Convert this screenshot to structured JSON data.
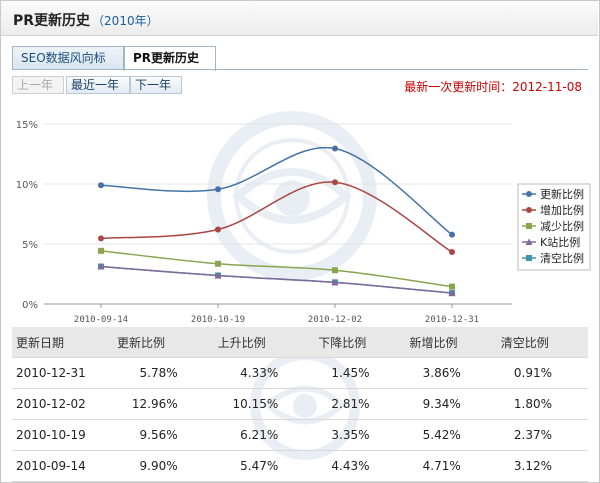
{
  "header": {
    "title": "PR更新历史",
    "year": "（2010年）"
  },
  "tabs": [
    {
      "label": "SEO数据风向标"
    },
    {
      "label": "PR更新历史"
    }
  ],
  "buttons": {
    "prev": "上一年",
    "recent": "最近一年",
    "next": "下一年"
  },
  "update_time": "最新一次更新时间：2012-11-08",
  "chart_data": {
    "type": "line",
    "categories": [
      "2010-09-14",
      "2010-10-19",
      "2010-12-02",
      "2010-12-31"
    ],
    "ylim": [
      0,
      15
    ],
    "yticks": [
      "15%",
      "10%",
      "5%",
      "0%"
    ],
    "legend_position": "right",
    "series": [
      {
        "name": "更新比例",
        "color": "#4572a7",
        "values": [
          9.9,
          9.56,
          12.96,
          5.78
        ]
      },
      {
        "name": "增加比例",
        "color": "#aa4643",
        "values": [
          5.47,
          6.21,
          10.15,
          4.33
        ]
      },
      {
        "name": "减少比例",
        "color": "#89a54e",
        "values": [
          4.43,
          3.35,
          2.81,
          1.45
        ]
      },
      {
        "name": "K站比例",
        "color": "#80699b",
        "values": [
          3.12,
          2.37,
          1.8,
          0.91
        ]
      },
      {
        "name": "清空比例",
        "color": "#3d96ae",
        "values": [
          3.12,
          2.37,
          1.8,
          0.91
        ]
      }
    ]
  },
  "table": {
    "headers": [
      "更新日期",
      "更新比例",
      "上升比例",
      "下降比例",
      "新增比例",
      "清空比例"
    ],
    "rows": [
      [
        "2010-12-31",
        "5.78%",
        "4.33%",
        "1.45%",
        "3.86%",
        "0.91%"
      ],
      [
        "2010-12-02",
        "12.96%",
        "10.15%",
        "2.81%",
        "9.34%",
        "1.80%"
      ],
      [
        "2010-10-19",
        "9.56%",
        "6.21%",
        "3.35%",
        "5.42%",
        "2.37%"
      ],
      [
        "2010-09-14",
        "9.90%",
        "5.47%",
        "4.43%",
        "4.71%",
        "3.12%"
      ]
    ]
  }
}
